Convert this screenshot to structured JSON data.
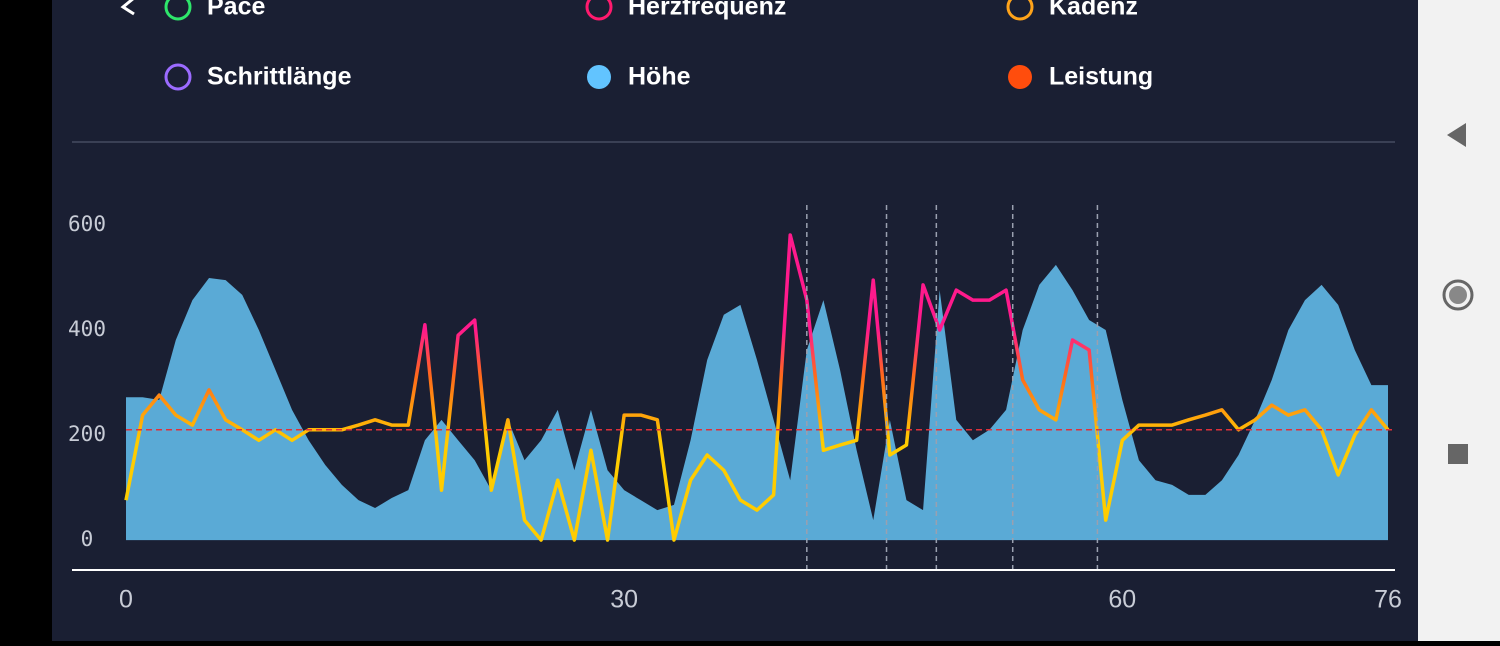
{
  "chart_data": {
    "type": "area-line",
    "legend": [
      {
        "name": "Pace",
        "color": "#2ee66b",
        "filled": false
      },
      {
        "name": "Herzfrequenz",
        "color": "#ff1a6e",
        "filled": false
      },
      {
        "name": "Kadenz",
        "color": "#ffa31a",
        "filled": false
      },
      {
        "name": "Schrittlänge",
        "color": "#9b6bff",
        "filled": false
      },
      {
        "name": "Höhe",
        "color": "#62c4ff",
        "filled": true
      },
      {
        "name": "Leistung",
        "color": "#ff4d0d",
        "filled": true
      }
    ],
    "x": [
      0,
      1,
      2,
      3,
      4,
      5,
      6,
      7,
      8,
      9,
      10,
      11,
      12,
      13,
      14,
      15,
      16,
      17,
      18,
      19,
      20,
      21,
      22,
      23,
      24,
      25,
      26,
      27,
      28,
      29,
      30,
      31,
      32,
      33,
      34,
      35,
      36,
      37,
      38,
      39,
      40,
      41,
      42,
      43,
      44,
      45,
      46,
      47,
      48,
      49,
      50,
      51,
      52,
      53,
      54,
      55,
      56,
      57,
      58,
      59,
      60,
      61,
      62,
      63,
      64,
      65,
      66,
      67,
      68,
      69,
      70,
      71,
      72,
      73,
      74,
      75,
      76
    ],
    "series": [
      {
        "name": "Höhe",
        "color": "#5aaad6",
        "kind": "area",
        "values": [
          272,
          272,
          267,
          381,
          457,
          499,
          495,
          467,
          400,
          324,
          248,
          190,
          143,
          105,
          76,
          61,
          80,
          95,
          190,
          229,
          190,
          152,
          95,
          229,
          152,
          190,
          248,
          133,
          248,
          133,
          95,
          76,
          57,
          67,
          190,
          343,
          429,
          448,
          343,
          229,
          114,
          362,
          457,
          324,
          171,
          38,
          229,
          76,
          57,
          476,
          229,
          190,
          210,
          248,
          400,
          486,
          524,
          476,
          419,
          400,
          267,
          152,
          114,
          105,
          86,
          86,
          114,
          162,
          229,
          305,
          400,
          457,
          486,
          448,
          362,
          295,
          295
        ]
      },
      {
        "name": "Leistung",
        "colors": [
          "#ffcc00",
          "#ff6a1a",
          "#ff1a8c"
        ],
        "kind": "line",
        "values": [
          76,
          238,
          276,
          238,
          219,
          286,
          229,
          210,
          190,
          210,
          190,
          210,
          210,
          210,
          219,
          229,
          219,
          219,
          410,
          95,
          390,
          419,
          95,
          229,
          38,
          0,
          114,
          0,
          171,
          0,
          238,
          238,
          229,
          0,
          114,
          162,
          133,
          76,
          57,
          86,
          581,
          457,
          171,
          181,
          190,
          495,
          162,
          181,
          486,
          400,
          476,
          457,
          457,
          476,
          305,
          248,
          229,
          381,
          362,
          38,
          190,
          219,
          219,
          219,
          229,
          238,
          248,
          210,
          229,
          257,
          238,
          248,
          210,
          124,
          200,
          248,
          210
        ]
      }
    ],
    "reference_line": 210,
    "reference_color": "#e0303a",
    "markers_x": [
      41,
      45.8,
      48.8,
      53.4,
      58.5
    ],
    "xlim": [
      0,
      76
    ],
    "xticks": [
      0,
      30,
      60,
      76
    ],
    "ylim": [
      -57,
      680
    ],
    "yticks": [
      0,
      200,
      400,
      600
    ]
  }
}
